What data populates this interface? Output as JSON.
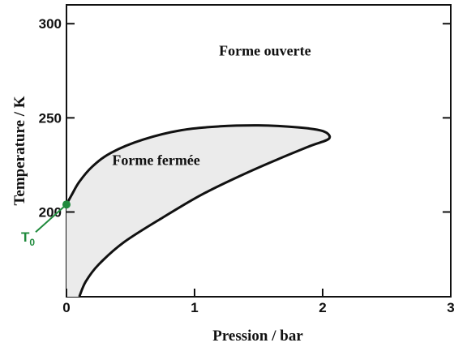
{
  "chart_data": {
    "type": "line",
    "title": "",
    "xlabel": "Pression / bar",
    "ylabel": "Temperature / K",
    "xlim": [
      0,
      3
    ],
    "ylim": [
      155,
      310
    ],
    "x_ticks": [
      0,
      1,
      2,
      3
    ],
    "x_tick_labels": [
      "0",
      "1",
      "2",
      "3"
    ],
    "y_ticks": [
      200,
      250,
      300
    ],
    "y_tick_labels": [
      "200",
      "250",
      "300"
    ],
    "grid": false,
    "regions": [
      {
        "name": "Forme ouverte",
        "label_at": [
          1.55,
          283
        ]
      },
      {
        "name": "Forme fermée",
        "label_at": [
          0.7,
          225
        ]
      }
    ],
    "boundary": {
      "name": "",
      "fill": "#ebebeb",
      "points": [
        [
          0.1,
          155
        ],
        [
          0.15,
          163
        ],
        [
          0.25,
          172
        ],
        [
          0.45,
          184
        ],
        [
          0.75,
          197
        ],
        [
          1.05,
          209
        ],
        [
          1.35,
          219
        ],
        [
          1.65,
          228
        ],
        [
          1.9,
          235
        ],
        [
          2.05,
          239
        ],
        [
          2.0,
          243
        ],
        [
          1.8,
          245
        ],
        [
          1.5,
          246
        ],
        [
          1.2,
          245.5
        ],
        [
          0.9,
          243.5
        ],
        [
          0.6,
          238.5
        ],
        [
          0.35,
          231.5
        ],
        [
          0.2,
          224
        ],
        [
          0.1,
          216
        ],
        [
          0.04,
          209
        ],
        [
          0.0,
          204
        ]
      ]
    },
    "marker": {
      "label": "T",
      "subscript": "0",
      "x": 0.0,
      "y": 204,
      "color": "#1f8a3c"
    }
  }
}
